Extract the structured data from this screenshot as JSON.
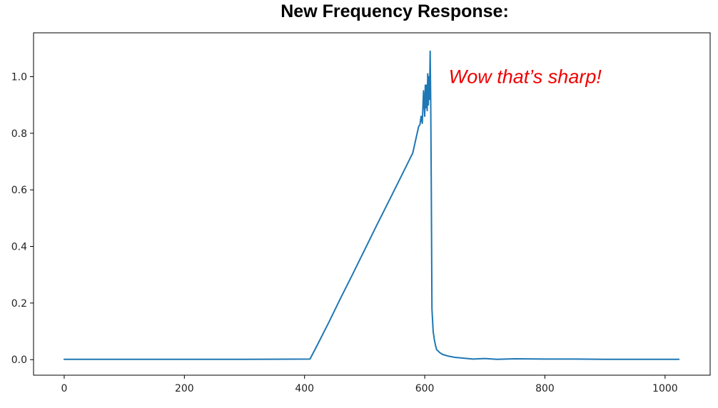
{
  "chart_data": {
    "type": "line",
    "title": "New Frequency Response:",
    "xlabel": "",
    "ylabel": "",
    "xlim": [
      -51,
      1075
    ],
    "ylim": [
      -0.055,
      1.155
    ],
    "xticks": [
      0,
      200,
      400,
      600,
      800,
      1000
    ],
    "xtick_labels": [
      "0",
      "200",
      "400",
      "600",
      "800",
      "1000"
    ],
    "yticks": [
      0.0,
      0.2,
      0.4,
      0.6,
      0.8,
      1.0
    ],
    "ytick_labels": [
      "0.0",
      "0.2",
      "0.4",
      "0.6",
      "0.8",
      "1.0"
    ],
    "grid": false,
    "series": [
      {
        "color": "#1f77b4",
        "x": [
          0,
          100,
          200,
          300,
          409,
          420,
          440,
          460,
          480,
          500,
          520,
          540,
          560,
          580,
          590,
          592,
          594,
          596,
          598,
          600,
          601,
          602,
          603,
          604,
          605,
          606,
          607,
          608,
          609,
          610,
          611,
          612,
          614,
          616,
          618,
          620,
          625,
          630,
          640,
          650,
          660,
          680,
          700,
          720,
          750,
          800,
          850,
          900,
          950,
          1000,
          1023
        ],
        "y": [
          0.001,
          0.001,
          0.001,
          0.001,
          0.002,
          0.046,
          0.13,
          0.217,
          0.302,
          0.388,
          0.474,
          0.559,
          0.644,
          0.73,
          0.825,
          0.83,
          0.86,
          0.835,
          0.95,
          0.86,
          0.97,
          0.89,
          0.97,
          0.88,
          1.01,
          0.9,
          1.0,
          0.92,
          1.09,
          0.91,
          0.6,
          0.18,
          0.1,
          0.07,
          0.05,
          0.035,
          0.025,
          0.018,
          0.012,
          0.008,
          0.006,
          0.002,
          0.004,
          0.001,
          0.003,
          0.002,
          0.002,
          0.001,
          0.001,
          0.001,
          0.001
        ]
      }
    ],
    "annotations": [
      {
        "text": "Wow that’s sharp!",
        "x": 640,
        "y": 1.0,
        "color": "#ee0000"
      }
    ]
  }
}
